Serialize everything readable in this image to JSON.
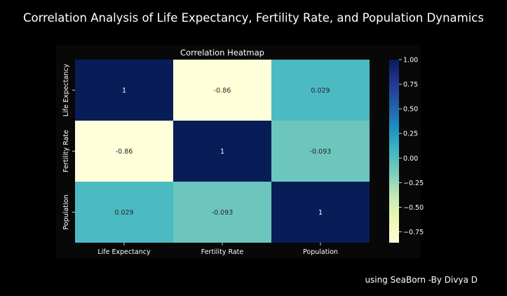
{
  "page": {
    "title": "Correlation Analysis of Life Expectancy, Fertility Rate, and Population Dynamics",
    "credit": "using SeaBorn -By Divya D"
  },
  "chart_data": {
    "type": "heatmap",
    "title": "Correlation Heatmap",
    "x_labels": [
      "Life Expectancy",
      "Fertility Rate",
      "Population"
    ],
    "y_labels": [
      "Life Expectancy",
      "Fertility Rate",
      "Population"
    ],
    "values": [
      [
        1,
        -0.86,
        0.029
      ],
      [
        -0.86,
        1,
        -0.093
      ],
      [
        0.029,
        -0.093,
        1
      ]
    ],
    "annotations": [
      [
        "1",
        "-0.86",
        "0.029"
      ],
      [
        "-0.86",
        "1",
        "-0.093"
      ],
      [
        "0.029",
        "-0.093",
        "1"
      ]
    ],
    "colormap": "YlGnBu",
    "vmin": -0.86,
    "vmax": 1.0,
    "colorbar_ticks": [
      1.0,
      0.75,
      0.5,
      0.25,
      0.0,
      -0.25,
      -0.5,
      -0.75
    ],
    "colorbar_tick_labels": [
      "1.00",
      "0.75",
      "0.50",
      "0.25",
      "0.00",
      "−0.25",
      "−0.50",
      "−0.75"
    ]
  }
}
